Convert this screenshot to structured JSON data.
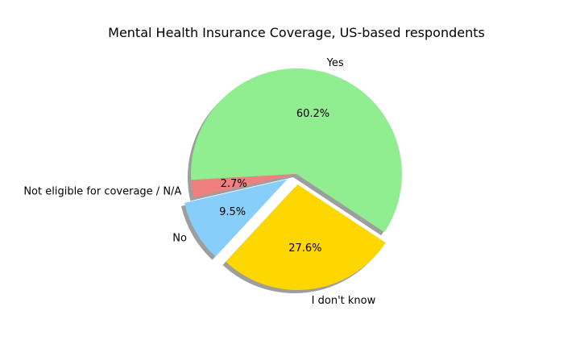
{
  "chart_data": {
    "type": "pie",
    "title": "Mental Health Insurance Coverage, US-based respondents",
    "shadow": true,
    "slices": [
      {
        "label": "Yes",
        "value": 60.2,
        "pct_label": "60.2%",
        "color": "#90EE90",
        "exploded": false
      },
      {
        "label": "Not eligible for coverage / N/A",
        "value": 2.7,
        "pct_label": "2.7%",
        "color": "#F08080",
        "exploded": false
      },
      {
        "label": "No",
        "value": 9.5,
        "pct_label": "9.5%",
        "color": "#87CEFA",
        "exploded": true
      },
      {
        "label": "I don't know",
        "value": 27.6,
        "pct_label": "27.6%",
        "color": "#FFD700",
        "exploded": true
      }
    ]
  }
}
